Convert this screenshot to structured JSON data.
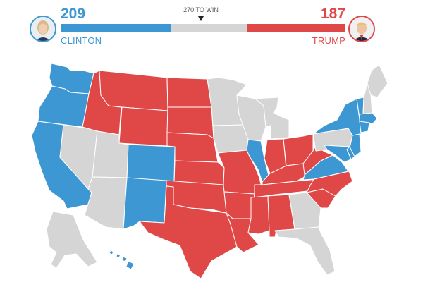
{
  "header": {
    "target_label": "270 TO WIN",
    "total_votes": 538,
    "target_votes": 270,
    "undecided_color": "#d5d5d5",
    "left": {
      "name": "CLINTON",
      "votes": "209",
      "value": 209,
      "color": "#3d97d3",
      "avatar_icon": "clinton-portrait-icon"
    },
    "right": {
      "name": "TRUMP",
      "votes": "187",
      "value": 187,
      "color": "#e04848",
      "avatar_icon": "trump-portrait-icon"
    }
  },
  "map": {
    "colors": {
      "clinton": "#3d97d3",
      "trump": "#e04848",
      "undecided": "#d5d5d5"
    },
    "states": {
      "WA": "clinton",
      "OR": "clinton",
      "CA": "clinton",
      "NV": "undecided",
      "ID": "trump",
      "MT": "trump",
      "WY": "trump",
      "UT": "undecided",
      "AZ": "undecided",
      "CO": "clinton",
      "NM": "clinton",
      "ND": "trump",
      "SD": "trump",
      "NE": "trump",
      "KS": "trump",
      "OK": "trump",
      "TX": "trump",
      "MN": "undecided",
      "IA": "undecided",
      "MO": "trump",
      "AR": "trump",
      "LA": "trump",
      "WI": "undecided",
      "IL": "clinton",
      "MI": "undecided",
      "IN": "trump",
      "OH": "trump",
      "KY": "trump",
      "TN": "trump",
      "MS": "trump",
      "AL": "trump",
      "GA": "undecided",
      "FL": "undecided",
      "SC": "trump",
      "NC": "trump",
      "VA": "clinton",
      "WV": "trump",
      "PA": "undecided",
      "NY": "clinton",
      "VT": "clinton",
      "NH": "undecided",
      "ME": "undecided",
      "MA": "clinton",
      "CT": "clinton",
      "NJ": "clinton",
      "DE": "clinton",
      "MD": "clinton",
      "AK": "undecided",
      "HI": "clinton"
    }
  }
}
